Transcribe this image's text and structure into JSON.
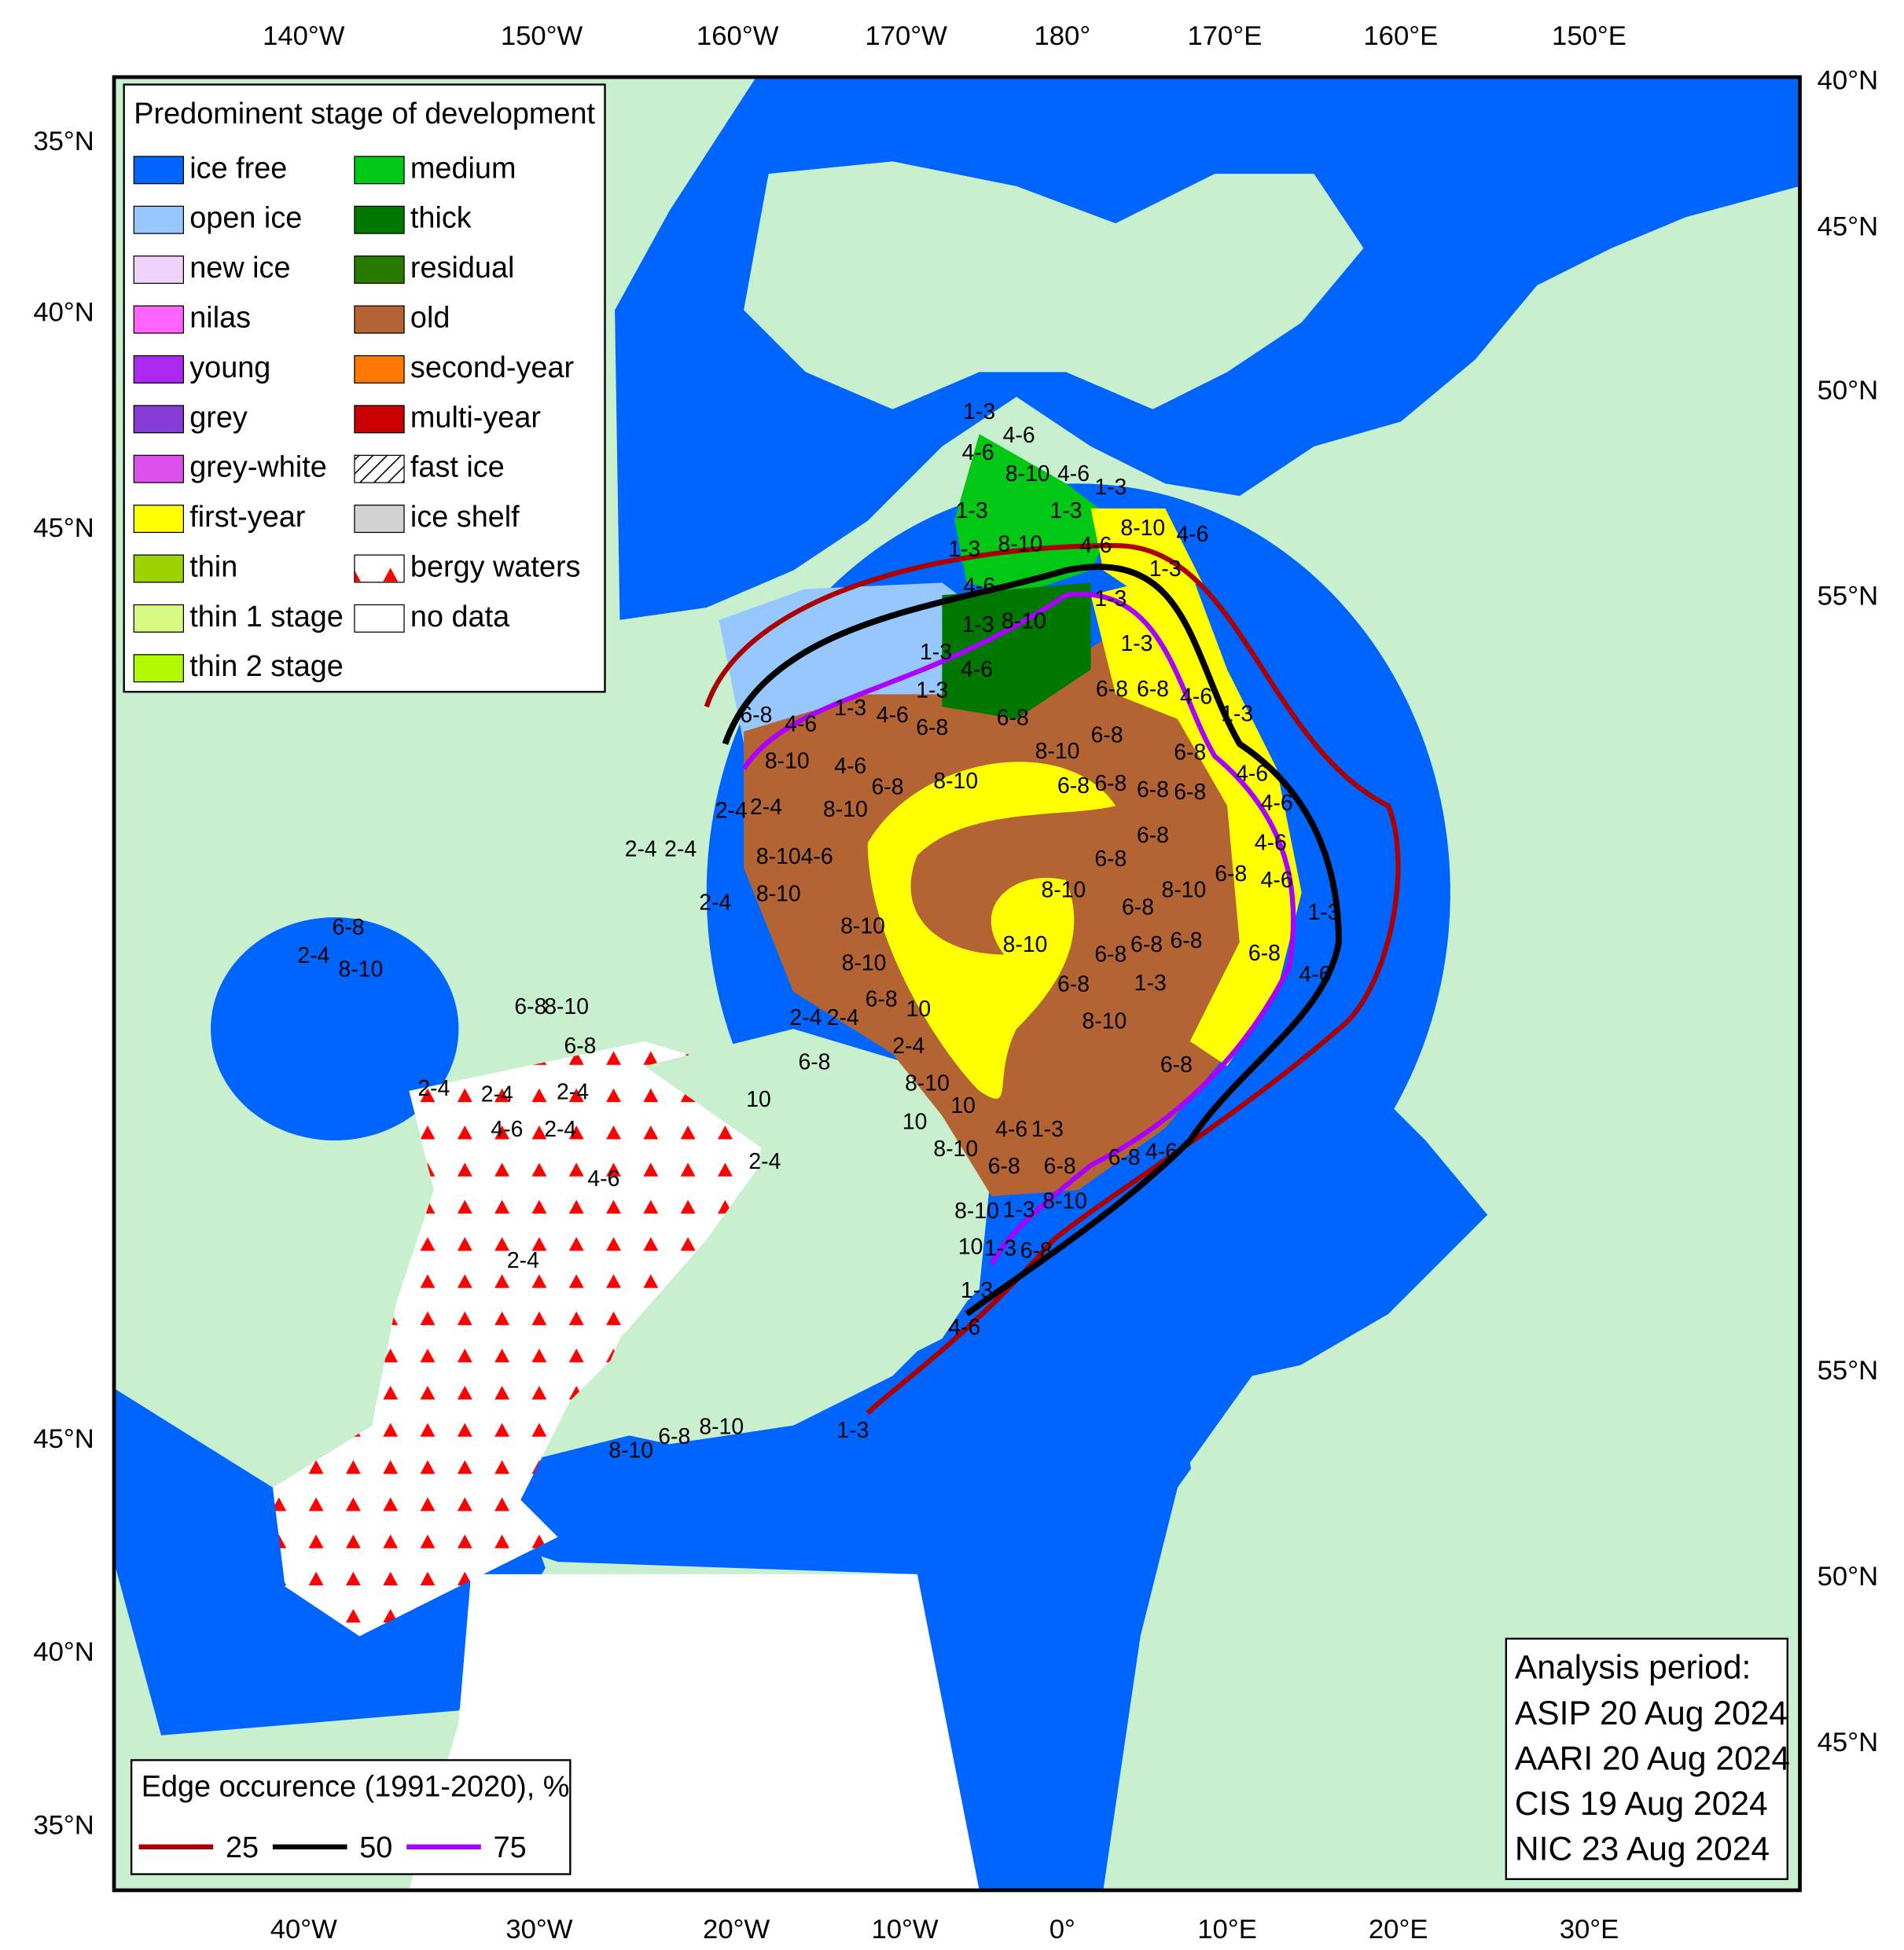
{
  "axis_labels": {
    "top": [
      "140°W",
      "150°W",
      "160°W",
      "170°W",
      "180°",
      "170°E",
      "160°E",
      "150°E"
    ],
    "bottom": [
      "40°W",
      "30°W",
      "20°W",
      "10°W",
      "0°",
      "10°E",
      "20°E",
      "30°E"
    ],
    "left": [
      "35°N",
      "40°N",
      "45°N",
      "45°N",
      "40°N",
      "35°N"
    ],
    "right": [
      "40°N",
      "45°N",
      "50°N",
      "55°N",
      "55°N",
      "50°N",
      "45°N"
    ]
  },
  "legend": {
    "title": "Predominent stage of development",
    "items": [
      {
        "label": "ice free",
        "color": "#0064ff"
      },
      {
        "label": "open ice",
        "color": "#96c8ff"
      },
      {
        "label": "new ice",
        "color": "#f0d2fa"
      },
      {
        "label": "nilas",
        "color": "#ff64ff"
      },
      {
        "label": "young",
        "color": "#aa28f0"
      },
      {
        "label": "grey",
        "color": "#873cd7"
      },
      {
        "label": "grey-white",
        "color": "#dc50eb"
      },
      {
        "label": "first-year",
        "color": "#ffff00"
      },
      {
        "label": "thin",
        "color": "#9bd200"
      },
      {
        "label": "thin 1 stage",
        "color": "#d7fa82"
      },
      {
        "label": "thin 2 stage",
        "color": "#affa00"
      },
      {
        "label": "medium",
        "color": "#00c814"
      },
      {
        "label": "thick",
        "color": "#007800"
      },
      {
        "label": "residual",
        "color": "#267a00"
      },
      {
        "label": "old",
        "color": "#b46432"
      },
      {
        "label": "second-year",
        "color": "#ff7800"
      },
      {
        "label": "multi-year",
        "color": "#c80000"
      },
      {
        "label": "fast ice",
        "color": "#ffffff",
        "pattern": "hatch"
      },
      {
        "label": "ice shelf",
        "color": "#d2d2d2"
      },
      {
        "label": "bergy waters",
        "color": "#ffffff",
        "pattern": "triangles"
      },
      {
        "label": "no data",
        "color": "#ffffff"
      }
    ]
  },
  "edge_legend": {
    "title": "Edge occurence (1991-2020), %",
    "items": [
      {
        "label": 25,
        "color": "#aa0000"
      },
      {
        "label": 50,
        "color": "#000000"
      },
      {
        "label": 75,
        "color": "#aa00ff"
      }
    ]
  },
  "analysis": {
    "title": "Analysis period:",
    "lines": [
      "ASIP 20 Aug 2024",
      "AARI 20 Aug 2024",
      "CIS 19 Aug 2024",
      "NIC 23 Aug 2024"
    ]
  },
  "map_labels": [
    "1-3",
    "4-6",
    "4-6",
    "8-10",
    "4-6",
    "1-3",
    "1-3",
    "1-3",
    "8-10",
    "4-6",
    "1-3",
    "8-10",
    "4-6",
    "1-3",
    "4-6",
    "1-3",
    "1-3",
    "8-10",
    "1-3",
    "1-3",
    "4-6",
    "6-8",
    "6-8",
    "4-6",
    "1-3",
    "1-3",
    "1-3",
    "4-6",
    "6-8",
    "6-8",
    "4-6",
    "6-8",
    "8-10",
    "4-6",
    "6-8",
    "8-10",
    "8-10",
    "6-8",
    "6-8",
    "6-8",
    "6-8",
    "6-8",
    "6-8",
    "4-6",
    "8-10",
    "2-4",
    "2-4",
    "6-8",
    "6-8",
    "4-6",
    "4-6",
    "8-10",
    "8-10",
    "6-8",
    "4-6",
    "6-8",
    "6-8",
    "8-10",
    "6-8",
    "6-8",
    "6-8",
    "1-3",
    "8-10",
    "6-8",
    "4-6",
    "8-10",
    "2-4",
    "8-10",
    "8-10",
    "6-8",
    "10",
    "2-4",
    "2-4",
    "2-4",
    "6-8",
    "8-10",
    "10",
    "10",
    "4-6",
    "1-3",
    "8-10",
    "6-8",
    "6-8",
    "6-8",
    "4-6",
    "8-10",
    "8-10",
    "1-3",
    "10",
    "1-3",
    "6-8",
    "1-3",
    "4-6",
    "6-8",
    "2-4",
    "8-10",
    "6-8",
    "8-10",
    "6-8",
    "2-4",
    "2-4",
    "2-4",
    "4-6",
    "2-4",
    "2-4",
    "4-6",
    "2-4",
    "8-10",
    "6-8",
    "8-10",
    "1-3",
    "10",
    "4-6",
    "6-8",
    "1-3",
    "2-4",
    "8-10",
    "2-4"
  ]
}
